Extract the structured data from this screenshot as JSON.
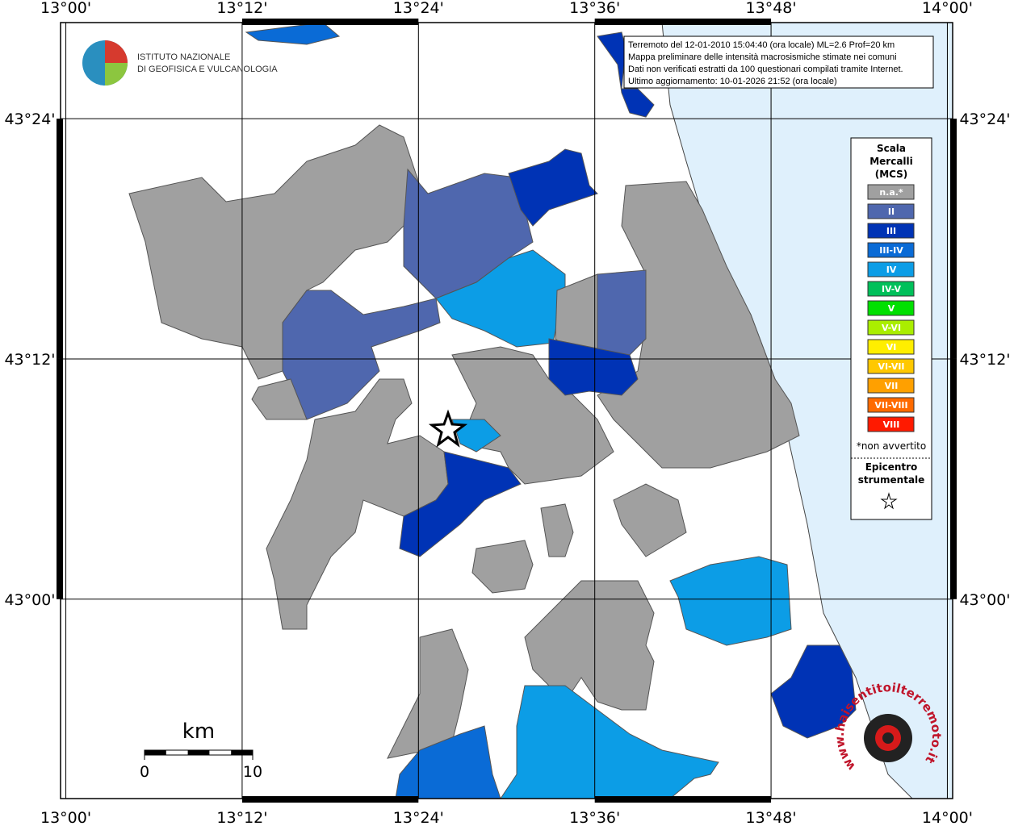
{
  "map": {
    "lonlim": [
      12.994,
      14.006
    ],
    "latlim": [
      42.834,
      43.48
    ],
    "lonticks": [
      {
        "value": 13.0,
        "label": "13°00'"
      },
      {
        "value": 13.2,
        "label": "13°12'"
      },
      {
        "value": 13.4,
        "label": "13°24'"
      },
      {
        "value": 13.6,
        "label": "13°36'"
      },
      {
        "value": 13.8,
        "label": "13°48'"
      },
      {
        "value": 14.0,
        "label": "14°00'"
      }
    ],
    "latticks": [
      {
        "value": 43.4,
        "label": "43°24'"
      },
      {
        "value": 43.2,
        "label": "43°12'"
      },
      {
        "value": 43.0,
        "label": "43°00'"
      }
    ],
    "grid": true
  },
  "logo": {
    "line1": "ISTITUTO NAZIONALE",
    "line2": "DI GEOFISICA E VULCANOLOGIA"
  },
  "info": [
    "Terremoto del 12-01-2010 15:04:40 (ora locale) ML=2.6 Prof=20 km",
    "Mappa preliminare delle intensità macrosismiche stimate nei comuni",
    "Dati non verificati estratti da 100 questionari compilati tramite Internet.",
    "Ultimo aggiornamento: 10-01-2026 21:52 (ora locale)"
  ],
  "legend": {
    "title": [
      "Scala",
      "Mercalli",
      "(MCS)"
    ],
    "items": [
      {
        "name": "n.a.*",
        "color": "#a0a0a0"
      },
      {
        "name": "II",
        "color": "#4f67ae"
      },
      {
        "name": "III",
        "color": "#0033b5"
      },
      {
        "name": "III-IV",
        "color": "#0a6bd6"
      },
      {
        "name": "IV",
        "color": "#0c9de6"
      },
      {
        "name": "IV-V",
        "color": "#00c05a"
      },
      {
        "name": "V",
        "color": "#00e000"
      },
      {
        "name": "V-VI",
        "color": "#aaee00"
      },
      {
        "name": "VI",
        "color": "#ffee00"
      },
      {
        "name": "VI-VII",
        "color": "#ffc800"
      },
      {
        "name": "VII",
        "color": "#ffa000"
      },
      {
        "name": "VII-VIII",
        "color": "#ff6a00"
      },
      {
        "name": "VIII",
        "color": "#ff1a00"
      }
    ],
    "note": "*non avvertito",
    "epicenter": [
      "Epicentro",
      "strumentale"
    ]
  },
  "scalebar": {
    "unit": "km",
    "ticks": [
      0,
      10
    ]
  },
  "watermark": "www.haisentitoilterremoto.it"
}
